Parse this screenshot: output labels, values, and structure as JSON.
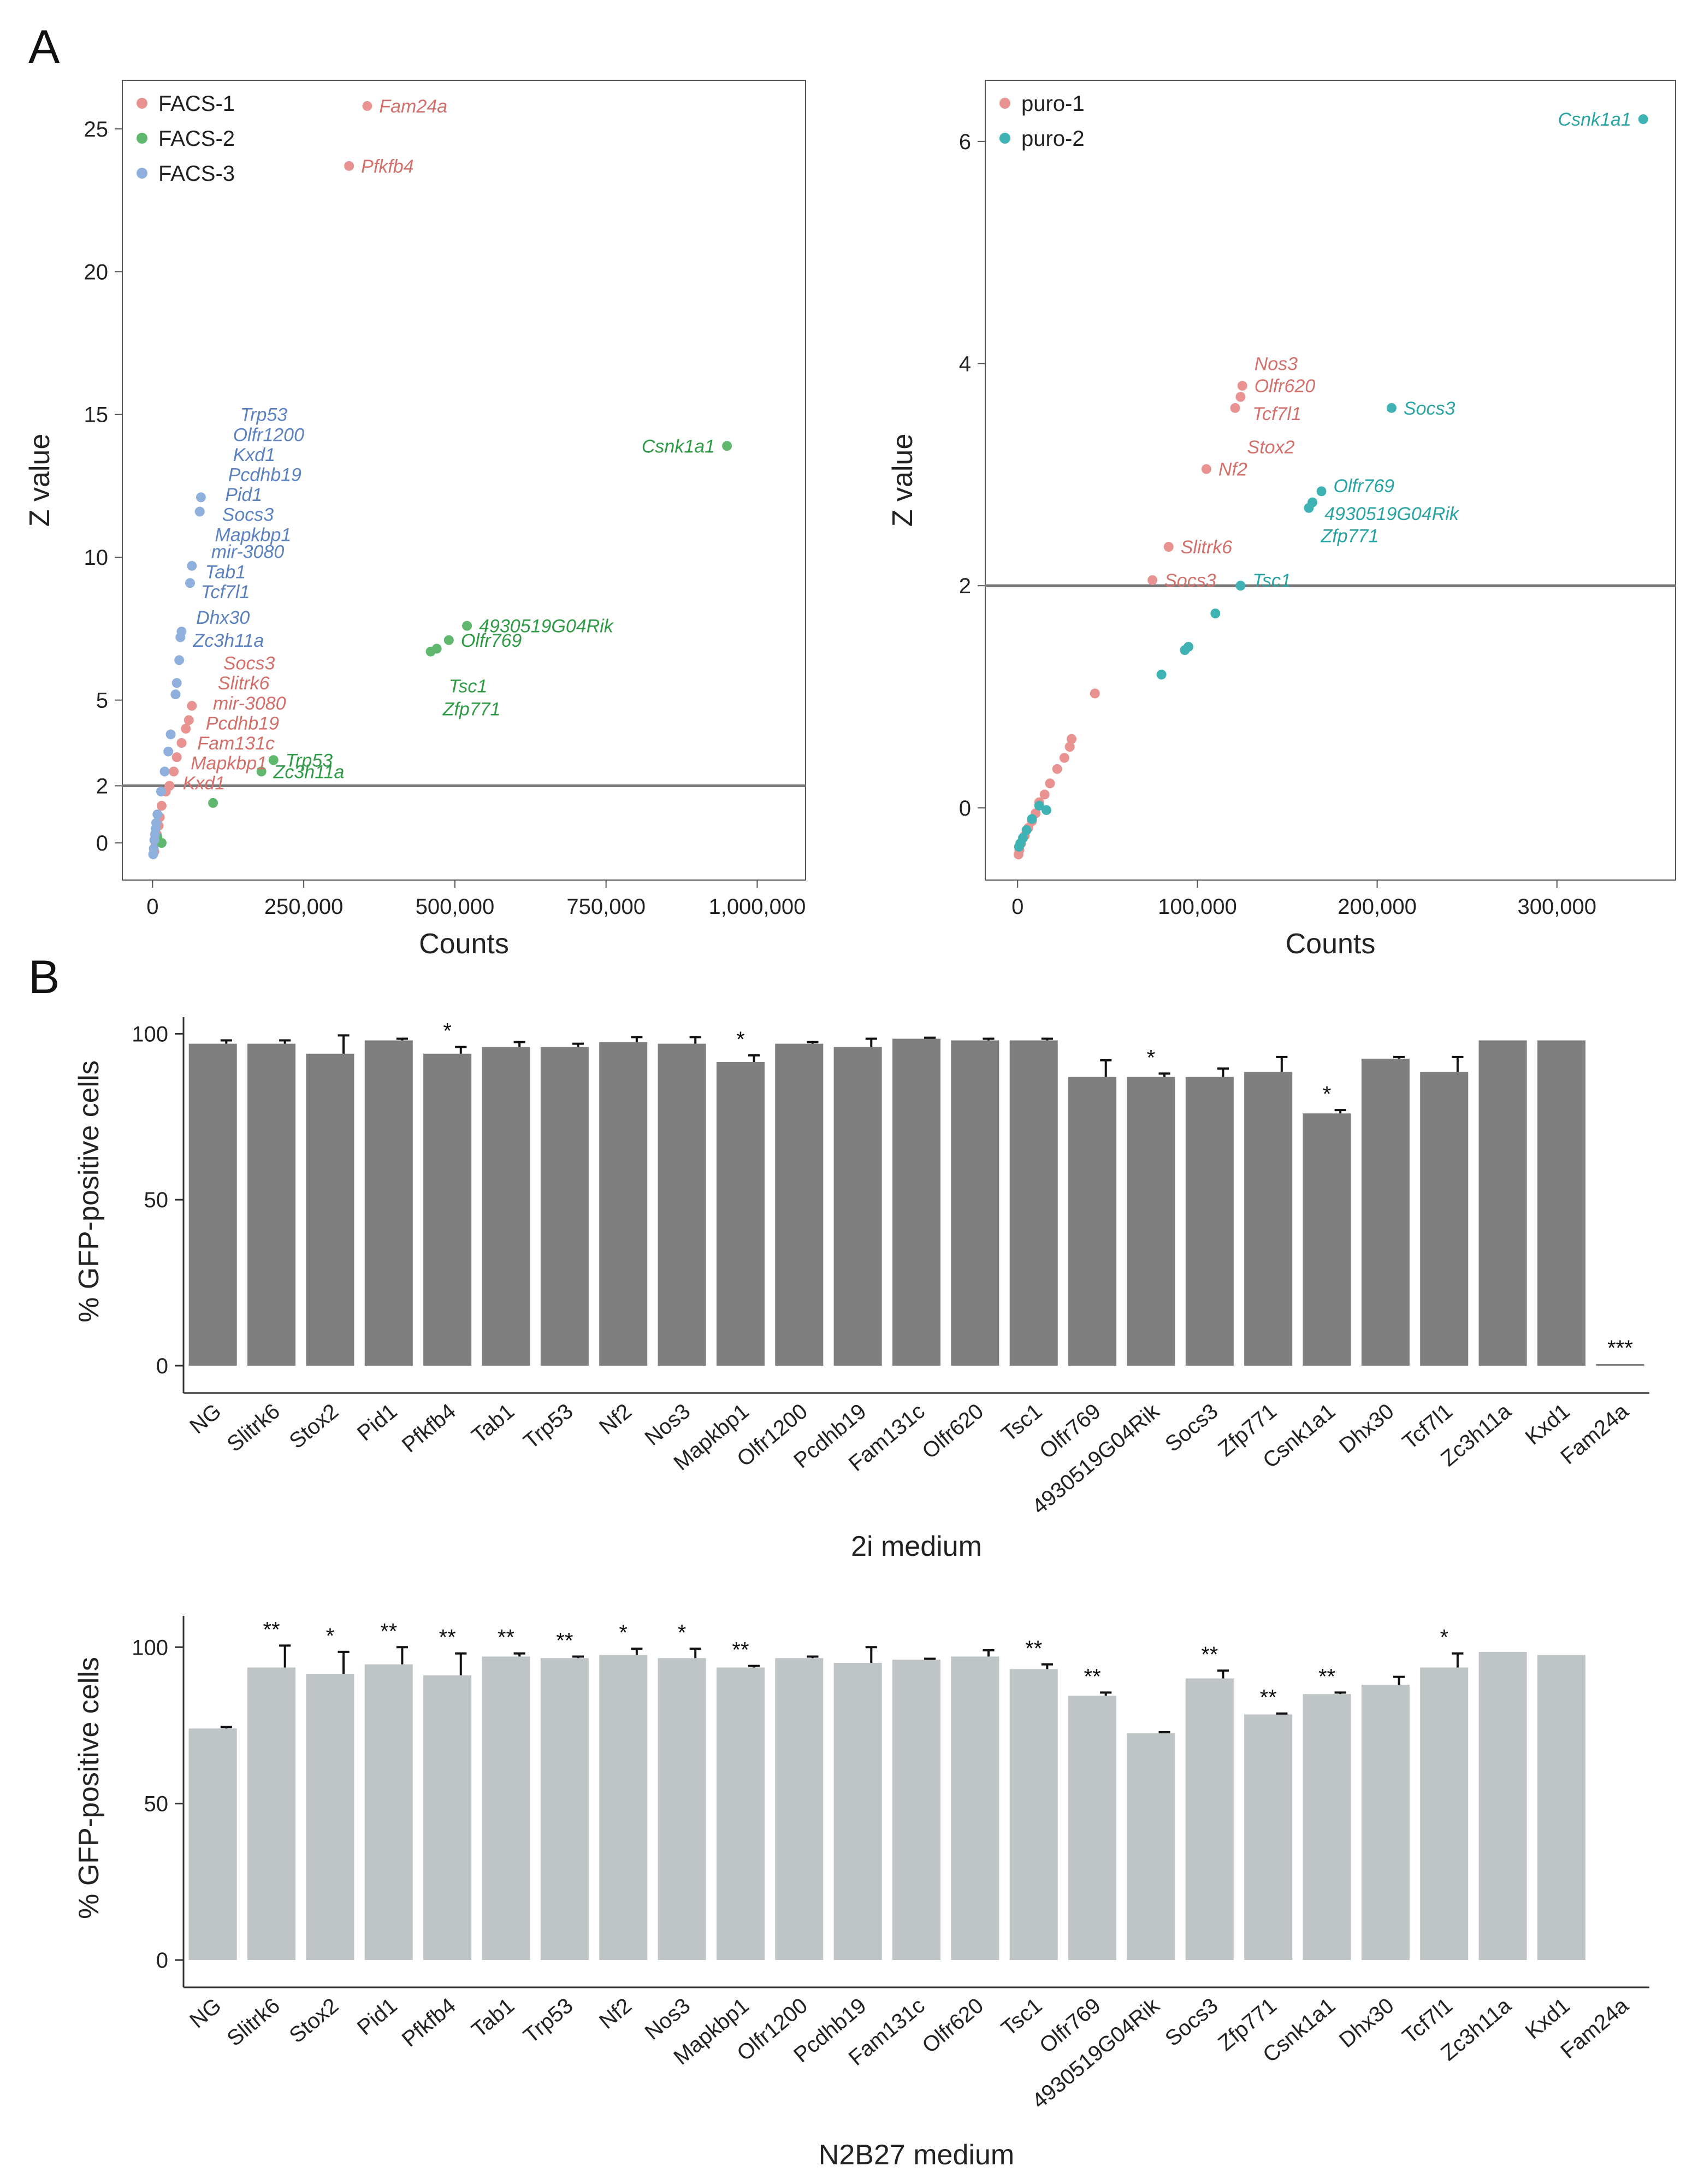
{
  "panel_labels": {
    "A": "A",
    "B": "B"
  },
  "colors": {
    "facs1": "#e89391",
    "facs2": "#5fb86e",
    "facs3": "#8fb0dc",
    "puro1": "#e89391",
    "puro2": "#3fb3b3",
    "label_red": "#d4706c",
    "label_green": "#2f9a45",
    "label_blue": "#5b82bf",
    "label_teal": "#2aa3a3",
    "bar_2i": "#7f7f7f",
    "bar_n2b27": "#bfc4c6",
    "threshold": "#777777"
  },
  "chart_data": [
    {
      "id": "facs",
      "type": "scatter",
      "xlabel": "Counts",
      "ylabel": "Z value",
      "xlim": [
        -50000,
        1080000
      ],
      "ylim": [
        -1.3,
        26.7
      ],
      "xticks": [
        0,
        250000,
        500000,
        750000,
        1000000
      ],
      "xtick_labels": [
        "0",
        "250,000",
        "500,000",
        "750,000",
        "1,000,000"
      ],
      "yticks": [
        0,
        2,
        5,
        10,
        15,
        20,
        25
      ],
      "ytick_labels": [
        "0",
        "2",
        "5",
        "10",
        "15",
        "20",
        "25"
      ],
      "threshold": 2,
      "legend": [
        "FACS-1",
        "FACS-2",
        "FACS-3"
      ],
      "legend_position": "top-left",
      "series": [
        {
          "name": "FACS-1",
          "color_key": "facs1",
          "points": [
            [
              355000,
              25.8
            ],
            [
              325000,
              23.7
            ],
            [
              3000,
              -0.3
            ],
            [
              5000,
              0.0
            ],
            [
              7000,
              0.3
            ],
            [
              10000,
              0.6
            ],
            [
              12000,
              0.9
            ],
            [
              15000,
              1.3
            ],
            [
              22000,
              1.8
            ],
            [
              28000,
              2.0
            ],
            [
              35000,
              2.5
            ],
            [
              40000,
              3.0
            ],
            [
              48000,
              3.5
            ],
            [
              55000,
              4.0
            ],
            [
              60000,
              4.3
            ],
            [
              65000,
              4.8
            ]
          ]
        },
        {
          "name": "FACS-2",
          "color_key": "facs2",
          "points": [
            [
              950000,
              13.9
            ],
            [
              520000,
              7.6
            ],
            [
              490000,
              7.1
            ],
            [
              470000,
              6.8
            ],
            [
              460000,
              6.7
            ],
            [
              200000,
              2.9
            ],
            [
              180000,
              2.5
            ],
            [
              100000,
              1.4
            ],
            [
              15000,
              0.0
            ],
            [
              8000,
              0.2
            ]
          ]
        },
        {
          "name": "FACS-3",
          "color_key": "facs3",
          "points": [
            [
              80000,
              12.1
            ],
            [
              78000,
              11.6
            ],
            [
              65000,
              9.7
            ],
            [
              62000,
              9.1
            ],
            [
              48000,
              7.4
            ],
            [
              46000,
              7.2
            ],
            [
              44000,
              6.4
            ],
            [
              40000,
              5.6
            ],
            [
              38000,
              5.2
            ],
            [
              30000,
              3.8
            ],
            [
              26000,
              3.2
            ],
            [
              20000,
              2.5
            ],
            [
              14000,
              1.8
            ],
            [
              8000,
              1.0
            ],
            [
              5000,
              0.5
            ],
            [
              3000,
              0.1
            ],
            [
              2000,
              -0.2
            ],
            [
              1000,
              -0.4
            ],
            [
              4000,
              0.3
            ],
            [
              6000,
              0.7
            ]
          ]
        }
      ],
      "labels": [
        {
          "text": "Fam24a",
          "x": 355000,
          "y": 25.8,
          "color_key": "label_red"
        },
        {
          "text": "Pfkfb4",
          "x": 325000,
          "y": 23.7,
          "color_key": "label_red"
        },
        {
          "text": "Csnk1a1",
          "x": 950000,
          "y": 13.9,
          "color_key": "label_green",
          "side": "left"
        },
        {
          "text": "4930519G04Rik",
          "x": 520000,
          "y": 7.6,
          "color_key": "label_green"
        },
        {
          "text": "Olfr769",
          "x": 490000,
          "y": 7.1,
          "color_key": "label_green"
        },
        {
          "text": "Tsc1",
          "x": 470000,
          "y": 6.8,
          "color_key": "label_green",
          "dy": 1.3
        },
        {
          "text": "Zfp771",
          "x": 460000,
          "y": 6.7,
          "color_key": "label_green",
          "dy": 2.0
        },
        {
          "text": "Trp53",
          "x": 200000,
          "y": 2.9,
          "color_key": "label_green"
        },
        {
          "text": "Zc3h11a",
          "x": 180000,
          "y": 2.5,
          "color_key": "label_green"
        },
        {
          "text": "Trp53",
          "x": 80000,
          "y": 15.0,
          "color_key": "label_blue",
          "free": true,
          "fx": 145000
        },
        {
          "text": "Olfr1200",
          "x": 80000,
          "y": 14.3,
          "color_key": "label_blue",
          "free": true,
          "fx": 133000
        },
        {
          "text": "Kxd1",
          "x": 80000,
          "y": 13.6,
          "color_key": "label_blue",
          "free": true,
          "fx": 133000
        },
        {
          "text": "Pcdhb19",
          "x": 80000,
          "y": 12.9,
          "color_key": "label_blue",
          "free": true,
          "fx": 125000
        },
        {
          "text": "Pid1",
          "x": 80000,
          "y": 12.2,
          "color_key": "label_blue",
          "free": true,
          "fx": 120000
        },
        {
          "text": "Socs3",
          "x": 80000,
          "y": 11.5,
          "color_key": "label_blue",
          "free": true,
          "fx": 115000
        },
        {
          "text": "Mapkbp1",
          "x": 80000,
          "y": 10.8,
          "color_key": "label_blue",
          "free": true,
          "fx": 103000
        },
        {
          "text": "mir-3080",
          "x": 80000,
          "y": 10.2,
          "color_key": "label_blue",
          "free": true,
          "fx": 97000
        },
        {
          "text": "Tab1",
          "x": 65000,
          "y": 9.5,
          "color_key": "label_blue",
          "free": true,
          "fx": 87000
        },
        {
          "text": "Tcf7l1",
          "x": 62000,
          "y": 8.8,
          "color_key": "label_blue",
          "free": true,
          "fx": 80000
        },
        {
          "text": "Dhx30",
          "x": 48000,
          "y": 7.9,
          "color_key": "label_blue",
          "free": true,
          "fx": 72000
        },
        {
          "text": "Zc3h11a",
          "x": 46000,
          "y": 7.1,
          "color_key": "label_blue",
          "free": true,
          "fx": 67000
        },
        {
          "text": "Socs3",
          "x": 60000,
          "y": 6.3,
          "color_key": "label_red",
          "free": true,
          "fx": 117000
        },
        {
          "text": "Slitrk6",
          "x": 60000,
          "y": 5.6,
          "color_key": "label_red",
          "free": true,
          "fx": 108000
        },
        {
          "text": "mir-3080",
          "x": 60000,
          "y": 4.9,
          "color_key": "label_red",
          "free": true,
          "fx": 100000
        },
        {
          "text": "Pcdhb19",
          "x": 60000,
          "y": 4.2,
          "color_key": "label_red",
          "free": true,
          "fx": 88000
        },
        {
          "text": "Fam131c",
          "x": 40000,
          "y": 3.5,
          "color_key": "label_red",
          "free": true,
          "fx": 74000
        },
        {
          "text": "Mapkbp1",
          "x": 30000,
          "y": 2.8,
          "color_key": "label_red",
          "free": true,
          "fx": 63000
        },
        {
          "text": "Kxd1",
          "x": 22000,
          "y": 2.1,
          "color_key": "label_red",
          "free": true,
          "fx": 50000
        }
      ]
    },
    {
      "id": "puro",
      "type": "scatter",
      "xlabel": "Counts",
      "ylabel": "Z value",
      "xlim": [
        -18000,
        366000
      ],
      "ylim": [
        -0.65,
        6.55
      ],
      "xticks": [
        0,
        100000,
        200000,
        300000
      ],
      "xtick_labels": [
        "0",
        "100,000",
        "200,000",
        "300,000"
      ],
      "yticks": [
        0,
        2,
        4,
        6
      ],
      "ytick_labels": [
        "0",
        "2",
        "4",
        "6"
      ],
      "threshold": 2,
      "legend": [
        "puro-1",
        "puro-2"
      ],
      "legend_position": "top-left",
      "series": [
        {
          "name": "puro-1",
          "color_key": "puro1",
          "points": [
            [
              125000,
              3.8
            ],
            [
              124000,
              3.7
            ],
            [
              121000,
              3.6
            ],
            [
              105000,
              3.05
            ],
            [
              84000,
              2.35
            ],
            [
              75000,
              2.05
            ],
            [
              43000,
              1.03
            ],
            [
              30000,
              0.62
            ],
            [
              29000,
              0.55
            ],
            [
              26000,
              0.45
            ],
            [
              22000,
              0.35
            ],
            [
              18000,
              0.22
            ],
            [
              15000,
              0.12
            ],
            [
              12000,
              0.05
            ],
            [
              10000,
              -0.05
            ],
            [
              8000,
              -0.12
            ],
            [
              6000,
              -0.18
            ],
            [
              4000,
              -0.25
            ],
            [
              2000,
              -0.32
            ],
            [
              1000,
              -0.38
            ],
            [
              500,
              -0.42
            ]
          ]
        },
        {
          "name": "puro-2",
          "color_key": "puro2",
          "points": [
            [
              348000,
              6.2
            ],
            [
              208000,
              3.6
            ],
            [
              169000,
              2.85
            ],
            [
              164000,
              2.75
            ],
            [
              162000,
              2.7
            ],
            [
              124000,
              2.0
            ],
            [
              110000,
              1.75
            ],
            [
              95000,
              1.45
            ],
            [
              93000,
              1.42
            ],
            [
              80000,
              1.2
            ],
            [
              16000,
              -0.02
            ],
            [
              12000,
              0.02
            ],
            [
              8000,
              -0.1
            ],
            [
              5000,
              -0.2
            ],
            [
              3000,
              -0.27
            ],
            [
              1500,
              -0.32
            ],
            [
              800,
              -0.35
            ]
          ]
        }
      ],
      "labels": [
        {
          "text": "Csnk1a1",
          "x": 348000,
          "y": 6.2,
          "color_key": "label_teal",
          "side": "left"
        },
        {
          "text": "Nos3",
          "x": 125000,
          "y": 3.8,
          "color_key": "label_red",
          "dy": -0.2
        },
        {
          "text": "Olfr620",
          "x": 125000,
          "y": 3.8,
          "color_key": "label_red"
        },
        {
          "text": "Tcf7l1",
          "x": 124000,
          "y": 3.7,
          "color_key": "label_red",
          "dy": 0.15
        },
        {
          "text": "Stox2",
          "x": 121000,
          "y": 3.6,
          "color_key": "label_red",
          "dy": 0.35
        },
        {
          "text": "Nf2",
          "x": 105000,
          "y": 3.05,
          "color_key": "label_red"
        },
        {
          "text": "Slitrk6",
          "x": 84000,
          "y": 2.35,
          "color_key": "label_red"
        },
        {
          "text": "Socs3",
          "x": 75000,
          "y": 2.05,
          "color_key": "label_red"
        },
        {
          "text": "Socs3",
          "x": 208000,
          "y": 3.6,
          "color_key": "label_teal"
        },
        {
          "text": "Olfr769",
          "x": 169000,
          "y": 2.85,
          "color_key": "label_teal",
          "dy": -0.05
        },
        {
          "text": "4930519G04Rik",
          "x": 164000,
          "y": 2.75,
          "color_key": "label_teal",
          "dy": 0.1
        },
        {
          "text": "Zfp771",
          "x": 162000,
          "y": 2.7,
          "color_key": "label_teal",
          "dy": 0.25
        },
        {
          "text": "Tsc1",
          "x": 124000,
          "y": 2.0,
          "color_key": "label_teal",
          "dy": -0.05
        }
      ]
    },
    {
      "id": "bar2i",
      "type": "bar",
      "xlabel": "2i medium",
      "ylabel": "% GFP-positive cells",
      "ylim": [
        0,
        105
      ],
      "yticks": [
        0,
        50,
        100
      ],
      "ytick_labels": [
        "0",
        "50",
        "100"
      ],
      "color_key": "bar_2i",
      "categories": [
        "NG",
        "Slitrk6",
        "Stox2",
        "Pid1",
        "Pfkfb4",
        "Tab1",
        "Trp53",
        "Nf2",
        "Nos3",
        "Mapkbp1",
        "Olfr1200",
        "Pcdhb19",
        "Fam131c",
        "Olfr620",
        "Tsc1",
        "Olfr769",
        "4930519G04Rik",
        "Socs3",
        "Zfp771",
        "Csnk1a1",
        "Dhx30",
        "Tcf7l1",
        "Zc3h11a",
        "Kxd1",
        "Fam24a"
      ],
      "values": [
        97,
        97,
        94,
        98,
        94,
        96,
        96,
        97.5,
        97,
        91.5,
        97,
        96,
        98.5,
        98,
        98,
        87,
        87,
        87,
        88.5,
        76,
        92.5,
        88.5,
        98,
        98,
        0.5
      ],
      "errors": [
        1,
        1,
        5.5,
        0.5,
        2,
        1.5,
        1,
        1.5,
        2,
        2,
        0.5,
        2.5,
        0.3,
        0.5,
        0.5,
        5,
        1,
        2.5,
        4.5,
        1,
        0.5,
        4.5,
        0,
        0,
        0
      ],
      "significance": [
        "",
        "",
        "",
        "",
        "*",
        "",
        "",
        "",
        "",
        "*",
        "",
        "",
        "",
        "",
        "",
        "",
        "*",
        "",
        "",
        "*",
        "",
        "",
        "",
        "",
        "***"
      ]
    },
    {
      "id": "barN2B27",
      "type": "bar",
      "xlabel": "N2B27 medium",
      "ylabel": "% GFP-positive cells",
      "ylim": [
        0,
        110
      ],
      "yticks": [
        0,
        50,
        100
      ],
      "ytick_labels": [
        "0",
        "50",
        "100"
      ],
      "color_key": "bar_n2b27",
      "categories": [
        "NG",
        "Slitrk6",
        "Stox2",
        "Pid1",
        "Pfkfb4",
        "Tab1",
        "Trp53",
        "Nf2",
        "Nos3",
        "Mapkbp1",
        "Olfr1200",
        "Pcdhb19",
        "Fam131c",
        "Olfr620",
        "Tsc1",
        "Olfr769",
        "4930519G04Rik",
        "Socs3",
        "Zfp771",
        "Csnk1a1",
        "Dhx30",
        "Tcf7l1",
        "Zc3h11a",
        "Kxd1",
        "Fam24a"
      ],
      "values": [
        74,
        93.5,
        91.5,
        94.5,
        91,
        97,
        96.5,
        97.5,
        96.5,
        93.5,
        96.5,
        95,
        96,
        97,
        93,
        84.5,
        72.5,
        90,
        78.5,
        85,
        88,
        93.5,
        98.5,
        97.5,
        0
      ],
      "errors": [
        0.5,
        7,
        7,
        5.5,
        7,
        1,
        0.5,
        2,
        3,
        0.5,
        0.5,
        5,
        0.3,
        2,
        1.5,
        1,
        0.3,
        2.5,
        0.3,
        0.5,
        2.5,
        4.5,
        0,
        0,
        0
      ],
      "significance": [
        "",
        "**",
        "*",
        "**",
        "**",
        "**",
        "**",
        "*",
        "*",
        "**",
        "",
        "",
        "",
        "",
        "**",
        "**",
        "",
        "**",
        "**",
        "**",
        "",
        "*",
        "",
        "",
        ""
      ]
    }
  ]
}
